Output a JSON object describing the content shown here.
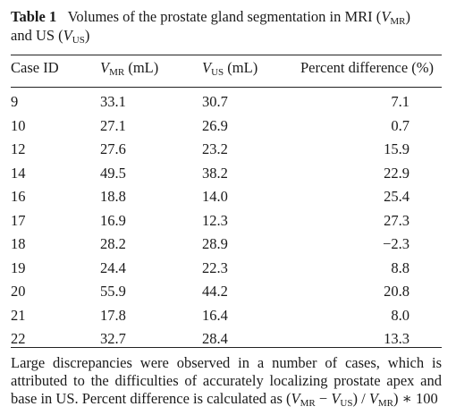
{
  "caption": {
    "label": "Table 1",
    "text_before": "Volumes of the prostate gland segmentation in MRI (",
    "vmr_base": "V",
    "vmr_sub": "MR",
    "text_mid": ")",
    "line2_before": "and US (",
    "vus_base": "V",
    "vus_sub": "US",
    "line2_after": ")"
  },
  "headers": {
    "case_id": "Case ID",
    "vmr_base": "V",
    "vmr_sub": "MR",
    "vmr_unit": " (mL)",
    "vus_base": "V",
    "vus_sub": "US",
    "vus_unit": " (mL)",
    "percent_difference": "Percent difference (%)"
  },
  "rows": [
    {
      "case_id": "9",
      "vmr": "33.1",
      "vus": "30.7",
      "pd": "7.1"
    },
    {
      "case_id": "10",
      "vmr": "27.1",
      "vus": "26.9",
      "pd": "0.7"
    },
    {
      "case_id": "12",
      "vmr": "27.6",
      "vus": "23.2",
      "pd": "15.9"
    },
    {
      "case_id": "14",
      "vmr": "49.5",
      "vus": "38.2",
      "pd": "22.9"
    },
    {
      "case_id": "16",
      "vmr": "18.8",
      "vus": "14.0",
      "pd": "25.4"
    },
    {
      "case_id": "17",
      "vmr": "16.9",
      "vus": "12.3",
      "pd": "27.3"
    },
    {
      "case_id": "18",
      "vmr": "28.2",
      "vus": "28.9",
      "pd": "−2.3"
    },
    {
      "case_id": "19",
      "vmr": "24.4",
      "vus": "22.3",
      "pd": "8.8"
    },
    {
      "case_id": "20",
      "vmr": "55.9",
      "vus": "44.2",
      "pd": "20.8"
    },
    {
      "case_id": "21",
      "vmr": "17.8",
      "vus": "16.4",
      "pd": "8.0"
    },
    {
      "case_id": "22",
      "vmr": "32.7",
      "vus": "28.4",
      "pd": "13.3"
    }
  ],
  "footnote": {
    "line1": "Large discrepancies were observed in a number of cases, which is",
    "line2": "attributed to the difficulties of accurately localizing prostate apex and",
    "line3_before": "base in US. Percent difference is calculated as (",
    "f_vmr_base": "V",
    "f_vmr_sub": "MR",
    "f_minus": " − ",
    "f_vus_base": "V",
    "f_vus_sub": "US",
    "f_mid": ") / ",
    "f_vmr2_base": "V",
    "f_vmr2_sub": "MR",
    "f_end": ") ∗ 100"
  }
}
